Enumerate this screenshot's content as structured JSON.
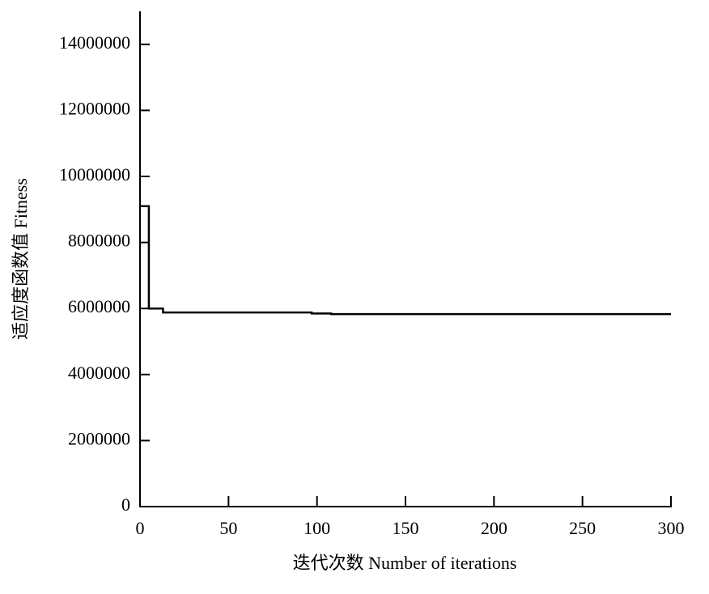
{
  "chart_data": {
    "type": "line",
    "x_label": "迭代次数 Number of iterations",
    "y_label": "适应度函数值 Fitness",
    "x": [
      0,
      5,
      5,
      13,
      13,
      97,
      97,
      108,
      108,
      300
    ],
    "series": [
      {
        "color": "#000000",
        "values": [
          9100000,
          9100000,
          6000000,
          6000000,
          5880000,
          5880000,
          5850000,
          5850000,
          5830000,
          5830000
        ]
      }
    ],
    "xlim": [
      0,
      300
    ],
    "xticks": [
      0,
      50,
      100,
      150,
      200,
      250,
      300
    ],
    "ylim": [
      0,
      15000000
    ],
    "yticks": [
      0,
      2000000,
      4000000,
      6000000,
      8000000,
      10000000,
      12000000,
      14000000
    ],
    "grid": false
  }
}
